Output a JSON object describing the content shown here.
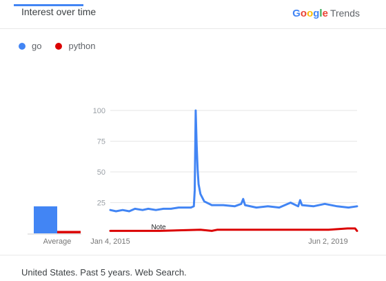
{
  "header": {
    "title": "Interest over time",
    "logo_brand": [
      "G",
      "o",
      "o",
      "g",
      "l",
      "e"
    ],
    "logo_brand_colors": [
      "#4285f4",
      "#ea4335",
      "#fbbc05",
      "#4285f4",
      "#34a853",
      "#ea4335"
    ],
    "logo_product": "Trends"
  },
  "footer": {
    "text": "United States. Past 5 years. Web Search."
  },
  "chart_data": {
    "type": "line",
    "legend_position": "top-left",
    "grid": true,
    "y_ticks": [
      "100",
      "75",
      "50",
      "25"
    ],
    "ylim": [
      0,
      100
    ],
    "x_tick_labels": [
      "Jan 4, 2015",
      "Jun 2, 2019"
    ],
    "xlim": [
      "2015-01-04",
      "2019-12-29"
    ],
    "note_label": "Note",
    "average_label": "Average",
    "series": [
      {
        "name": "go",
        "color": "#4285f4",
        "average": 22,
        "points": [
          [
            "2015-01-04",
            19
          ],
          [
            "2015-02-15",
            18
          ],
          [
            "2015-04-05",
            19
          ],
          [
            "2015-05-24",
            18
          ],
          [
            "2015-07-05",
            20
          ],
          [
            "2015-08-30",
            19
          ],
          [
            "2015-10-11",
            20
          ],
          [
            "2015-12-06",
            19
          ],
          [
            "2016-01-31",
            20
          ],
          [
            "2016-03-27",
            20
          ],
          [
            "2016-05-22",
            21
          ],
          [
            "2016-07-10",
            21
          ],
          [
            "2016-08-21",
            21
          ],
          [
            "2016-09-11",
            22
          ],
          [
            "2016-09-18",
            35
          ],
          [
            "2016-09-25",
            100
          ],
          [
            "2016-10-02",
            72
          ],
          [
            "2016-10-09",
            52
          ],
          [
            "2016-10-16",
            40
          ],
          [
            "2016-10-30",
            32
          ],
          [
            "2016-11-27",
            26
          ],
          [
            "2017-01-22",
            23
          ],
          [
            "2017-04-16",
            23
          ],
          [
            "2017-07-09",
            22
          ],
          [
            "2017-08-27",
            24
          ],
          [
            "2017-09-10",
            28
          ],
          [
            "2017-09-24",
            23
          ],
          [
            "2017-12-17",
            21
          ],
          [
            "2018-03-11",
            22
          ],
          [
            "2018-06-03",
            21
          ],
          [
            "2018-08-26",
            25
          ],
          [
            "2018-10-21",
            22
          ],
          [
            "2018-11-04",
            27
          ],
          [
            "2018-11-18",
            23
          ],
          [
            "2019-02-10",
            22
          ],
          [
            "2019-05-05",
            24
          ],
          [
            "2019-08-04",
            22
          ],
          [
            "2019-10-27",
            21
          ],
          [
            "2019-12-29",
            22
          ]
        ]
      },
      {
        "name": "python",
        "color": "#db0000",
        "average": 2,
        "points": [
          [
            "2015-01-04",
            2
          ],
          [
            "2016-01-03",
            2
          ],
          [
            "2016-10-30",
            3
          ],
          [
            "2017-01-22",
            2
          ],
          [
            "2017-03-05",
            3
          ],
          [
            "2018-01-07",
            3
          ],
          [
            "2018-07-01",
            3
          ],
          [
            "2018-12-30",
            3
          ],
          [
            "2019-06-02",
            3
          ],
          [
            "2019-10-20",
            4
          ],
          [
            "2019-12-15",
            4
          ],
          [
            "2019-12-29",
            2
          ]
        ]
      }
    ]
  }
}
